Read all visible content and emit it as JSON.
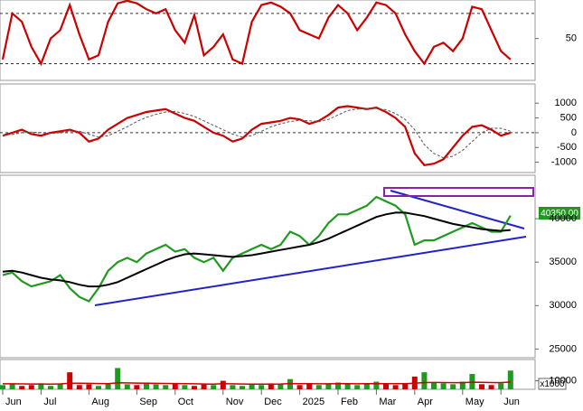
{
  "chart_data": [
    {
      "type": "line",
      "ylim": [
        0,
        96
      ],
      "yticks": [
        50
      ],
      "ref_lines": [
        20,
        80
      ],
      "series": [
        {
          "color": "#cc0000",
          "values": [
            25,
            80,
            70,
            40,
            20,
            50,
            60,
            90,
            55,
            25,
            30,
            70,
            92,
            95,
            92,
            85,
            80,
            85,
            60,
            45,
            78,
            30,
            40,
            55,
            25,
            20,
            70,
            90,
            93,
            88,
            80,
            60,
            55,
            50,
            75,
            90,
            80,
            60,
            75,
            93,
            90,
            80,
            55,
            35,
            20,
            40,
            45,
            35,
            50,
            88,
            85,
            60,
            35,
            25
          ]
        }
      ]
    },
    {
      "type": "line",
      "ylim": [
        -1350,
        1650
      ],
      "yticks": [
        1000,
        500,
        0,
        -500,
        -1000
      ],
      "ref_lines": [
        0
      ],
      "series": [
        {
          "color": "#cc0000",
          "values": [
            -100,
            0,
            100,
            -50,
            -100,
            0,
            50,
            100,
            0,
            -300,
            -200,
            100,
            300,
            500,
            600,
            700,
            750,
            800,
            650,
            500,
            400,
            200,
            0,
            -100,
            -300,
            -200,
            100,
            300,
            350,
            400,
            500,
            450,
            300,
            400,
            600,
            850,
            900,
            850,
            800,
            850,
            700,
            500,
            200,
            -700,
            -1100,
            -1050,
            -900,
            -500,
            -100,
            200,
            250,
            100,
            -100,
            0
          ]
        },
        {
          "color": "#555555",
          "dashed": true,
          "values": [
            -80,
            -60,
            0,
            20,
            0,
            -30,
            0,
            50,
            50,
            -50,
            -150,
            -100,
            50,
            200,
            380,
            520,
            620,
            700,
            720,
            650,
            550,
            400,
            250,
            100,
            -50,
            -150,
            -100,
            50,
            200,
            300,
            380,
            420,
            400,
            380,
            450,
            600,
            750,
            800,
            820,
            820,
            780,
            650,
            450,
            100,
            -400,
            -700,
            -850,
            -800,
            -600,
            -300,
            0,
            150,
            150,
            50
          ]
        }
      ]
    },
    {
      "type": "line",
      "ylim": [
        24000,
        45000
      ],
      "yticks": [
        40000,
        35000,
        30000,
        25000
      ],
      "last_label": "40350.00",
      "series": [
        {
          "color": "#1f9a1f",
          "values": [
            33500,
            33800,
            32800,
            32200,
            32500,
            32800,
            33500,
            32000,
            31000,
            30500,
            32000,
            34000,
            35000,
            35500,
            35000,
            36000,
            36500,
            37000,
            36200,
            36500,
            35500,
            35000,
            35500,
            34000,
            35500,
            36000,
            36500,
            37000,
            36500,
            37000,
            38500,
            38000,
            37000,
            38000,
            39500,
            40500,
            40500,
            41000,
            41500,
            42500,
            42000,
            41500,
            40500,
            37000,
            37500,
            37500,
            38000,
            38500,
            39000,
            39500,
            39000,
            38500,
            38500,
            40350
          ]
        },
        {
          "color": "#000000",
          "values": [
            33900,
            34000,
            33800,
            33500,
            33200,
            33000,
            32900,
            32700,
            32400,
            32200,
            32200,
            32400,
            32700,
            33200,
            33700,
            34200,
            34700,
            35200,
            35600,
            35900,
            36000,
            35900,
            35800,
            35700,
            35600,
            35700,
            35800,
            36000,
            36200,
            36400,
            36600,
            36800,
            37000,
            37300,
            37700,
            38200,
            38700,
            39200,
            39700,
            40200,
            40500,
            40700,
            40700,
            40500,
            40300,
            40000,
            39700,
            39400,
            39200,
            39000,
            38800,
            38700,
            38600,
            38700
          ]
        }
      ]
    },
    {
      "type": "bar",
      "ylim": [
        0,
        35000
      ],
      "yticks": [
        10000
      ],
      "unit_label": "x1000",
      "categories": [
        "Jun",
        null,
        null,
        null,
        "Jul",
        null,
        null,
        null,
        null,
        "Aug",
        null,
        null,
        null,
        null,
        "Sep",
        null,
        null,
        null,
        "Oct",
        null,
        null,
        null,
        null,
        "Nov",
        null,
        null,
        null,
        "Dec",
        null,
        null,
        null,
        "2025",
        null,
        null,
        null,
        "Feb",
        null,
        null,
        null,
        "Mar",
        null,
        null,
        null,
        "Apr",
        null,
        null,
        null,
        null,
        "May",
        null,
        null,
        null,
        "Jun",
        null
      ],
      "up_color": "#1f9a1f",
      "down_color": "#cc0000",
      "series": [
        {
          "values": [
            5000,
            6000,
            4000,
            5000,
            7000,
            4000,
            6000,
            20000,
            5000,
            6000,
            4000,
            7000,
            25000,
            6000,
            5000,
            8000,
            6000,
            5000,
            7000,
            5000,
            4000,
            6000,
            5000,
            10000,
            5000,
            4000,
            6000,
            5000,
            7000,
            6000,
            12000,
            5000,
            6000,
            5000,
            7000,
            8000,
            6000,
            5000,
            7000,
            9000,
            6000,
            5000,
            7000,
            15000,
            20000,
            8000,
            7000,
            6000,
            9000,
            18000,
            6000,
            5000,
            7000,
            22000
          ]
        },
        {
          "color": "#cc0000",
          "values": [
            6500,
            6500,
            6400,
            6300,
            6300,
            6200,
            6400,
            7200,
            7100,
            7000,
            6800,
            6700,
            7600,
            7500,
            7300,
            7200,
            7000,
            6900,
            6800,
            6700,
            6500,
            6300,
            6200,
            6600,
            6500,
            6300,
            6200,
            6100,
            6200,
            6300,
            6800,
            6700,
            6600,
            6500,
            6500,
            6600,
            6600,
            6500,
            6600,
            6700,
            6700,
            6600,
            6600,
            7200,
            8000,
            8100,
            8000,
            7800,
            7800,
            8400,
            8200,
            8000,
            7900,
            8600
          ]
        }
      ]
    }
  ]
}
